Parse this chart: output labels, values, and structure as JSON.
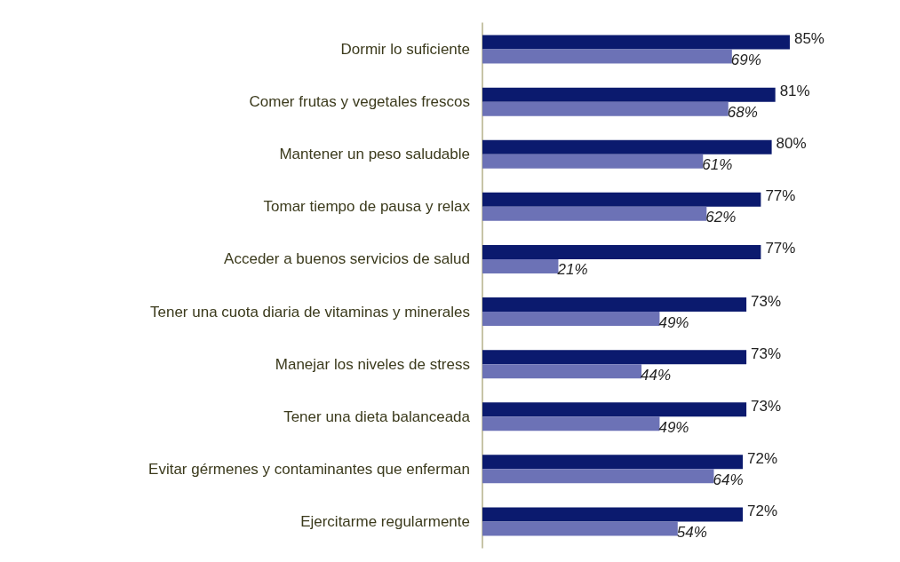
{
  "chart_data": {
    "type": "bar",
    "orientation": "horizontal",
    "categories": [
      "Dormir lo suficiente",
      "Comer frutas y vegetales frescos",
      "Mantener un peso saludable",
      "Tomar tiempo de pausa y relax",
      "Acceder a buenos servicios de salud",
      "Tener una cuota diaria de vitaminas y minerales",
      "Manejar los niveles de stress",
      "Tener una dieta balanceada",
      "Evitar gérmenes y contaminantes que enferman",
      "Ejercitarme regularmente"
    ],
    "series": [
      {
        "color": "#0b1a6e",
        "values": [
          85,
          81,
          80,
          77,
          77,
          73,
          73,
          73,
          72,
          72
        ],
        "value_labels": [
          "85%",
          "81%",
          "80%",
          "77%",
          "77%",
          "73%",
          "73%",
          "73%",
          "72%",
          "72%"
        ]
      },
      {
        "color": "#6c72b6",
        "values": [
          69,
          68,
          61,
          62,
          21,
          49,
          44,
          49,
          64,
          54
        ],
        "value_labels": [
          "69%",
          "68%",
          "61%",
          "62%",
          "21%",
          "49%",
          "44%",
          "49%",
          "64%",
          "54%"
        ]
      }
    ],
    "grid": false
  }
}
